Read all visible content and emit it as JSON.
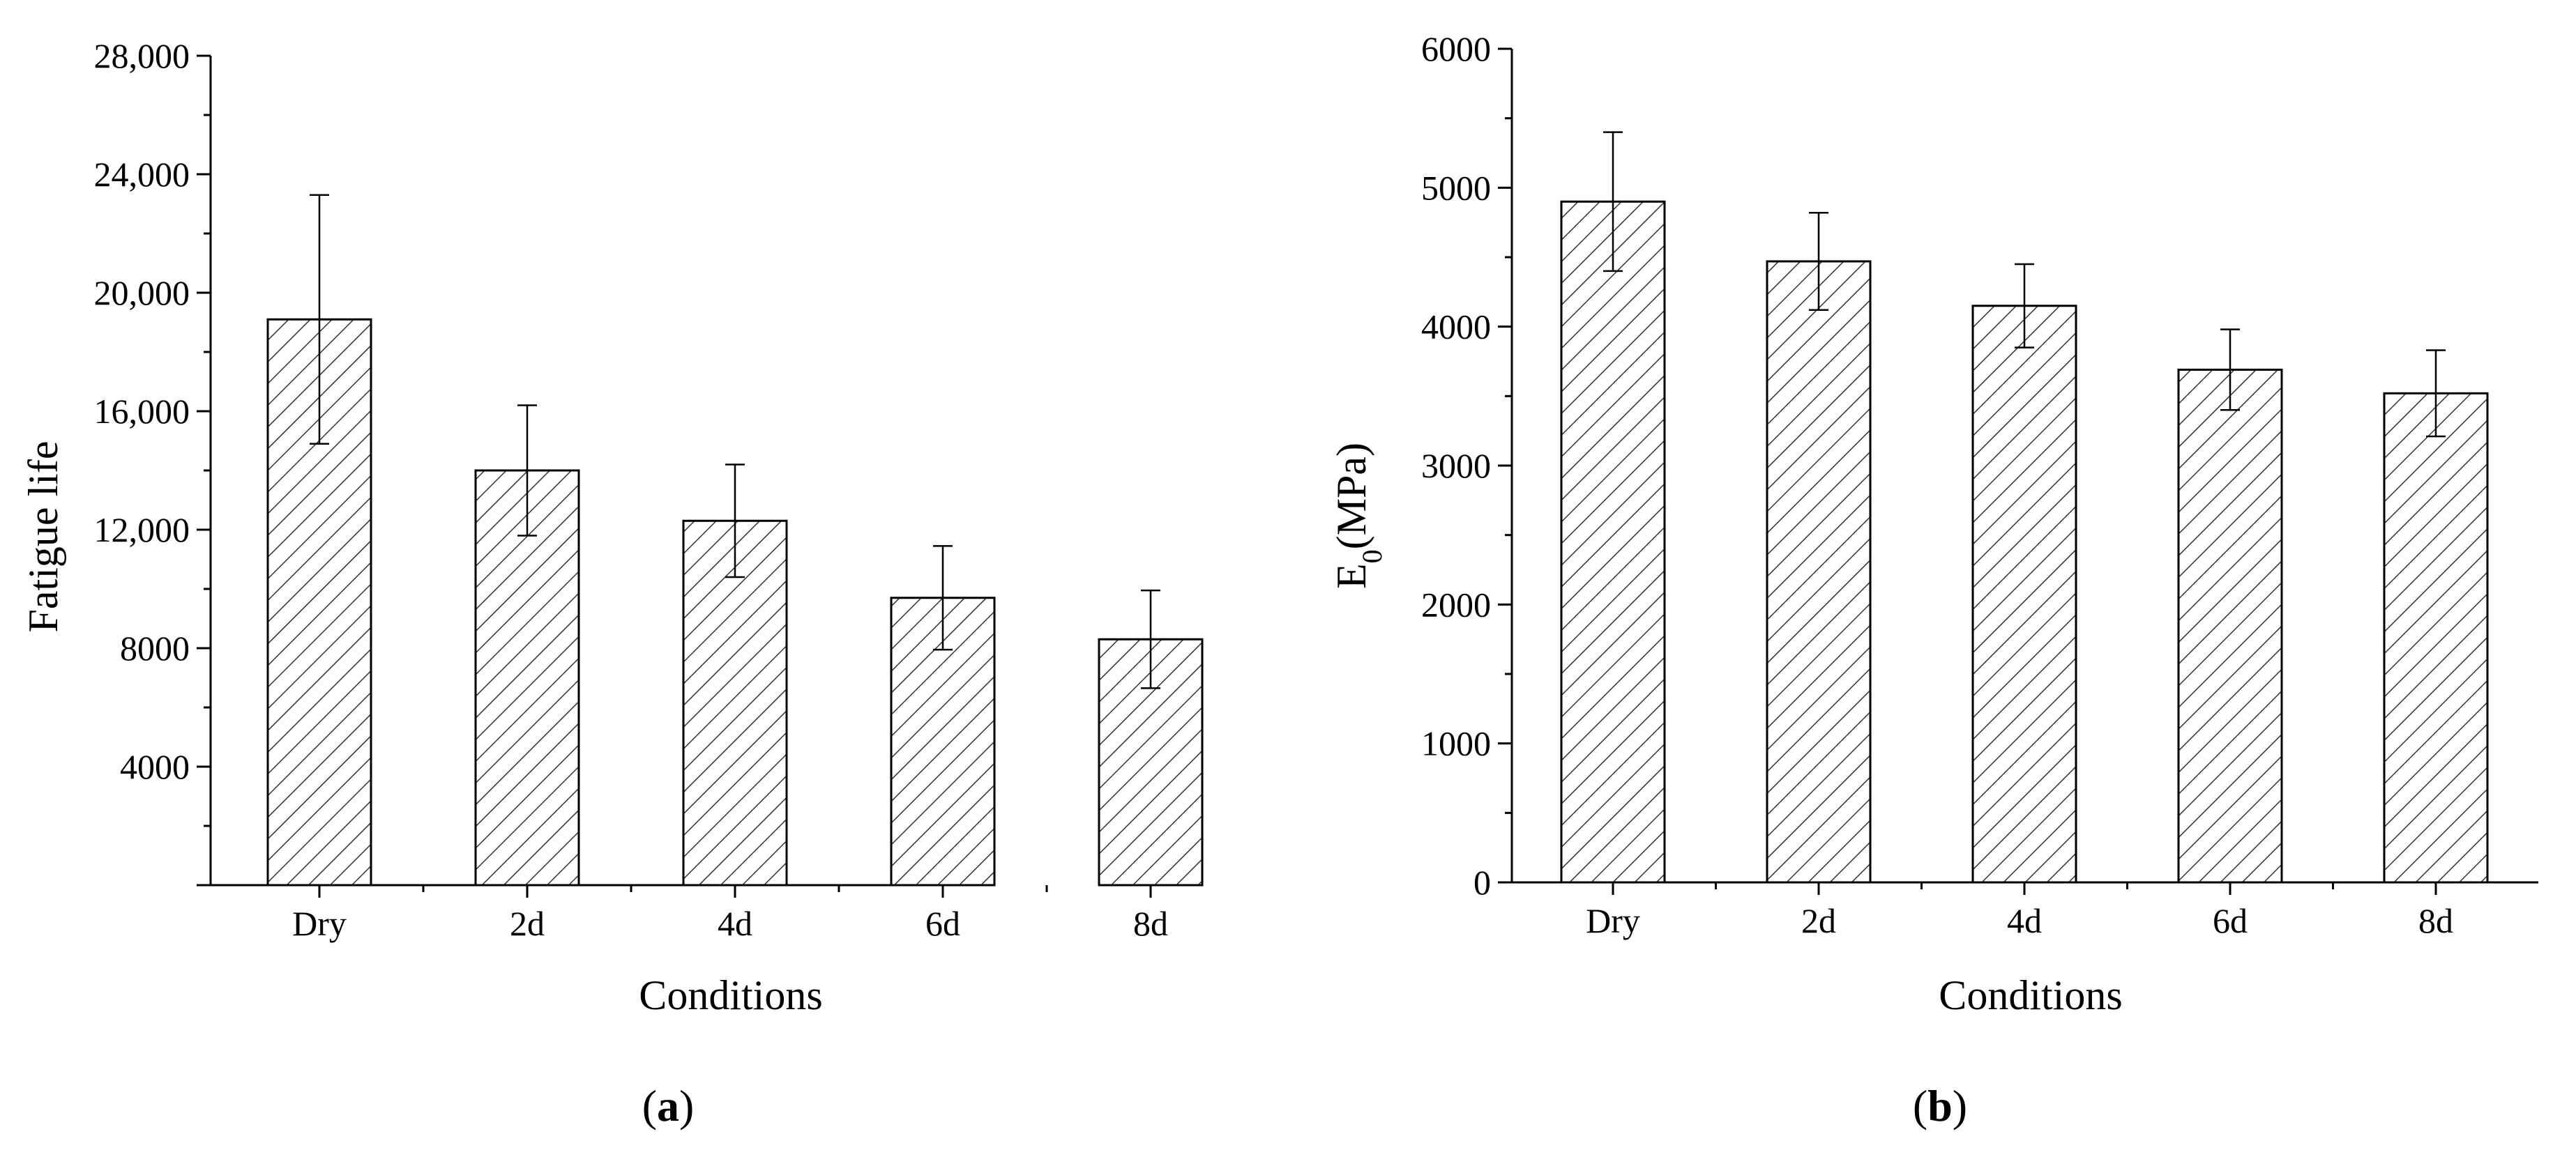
{
  "chart_data": [
    {
      "type": "bar",
      "panel_label": {
        "open": "(",
        "letter": "a",
        "close": ")"
      },
      "categories": [
        "Dry",
        "2d",
        "4d",
        "6d",
        "8d"
      ],
      "values": [
        19100,
        14000,
        12300,
        9700,
        8300
      ],
      "errors": [
        4200,
        2200,
        1900,
        1750,
        1650
      ],
      "xlabel": "Conditions",
      "ylabel": "Fatigue life",
      "ylim": [
        0,
        28000
      ],
      "yticks": [
        4000,
        8000,
        12000,
        16000,
        20000,
        24000,
        28000
      ],
      "ytick_labels": [
        "4000",
        "8000",
        "12,000",
        "16,000",
        "20,000",
        "24,000",
        "28,000"
      ],
      "grid": false,
      "fill": "hatched"
    },
    {
      "type": "bar",
      "panel_label": {
        "open": "(",
        "letter": "b",
        "close": ")"
      },
      "categories": [
        "Dry",
        "2d",
        "4d",
        "6d",
        "8d"
      ],
      "values": [
        4900,
        4470,
        4150,
        3690,
        3520
      ],
      "errors": [
        500,
        350,
        300,
        290,
        310
      ],
      "xlabel": "Conditions",
      "ylabel": {
        "main": "E",
        "sub": "0",
        "rest": "(MPa)"
      },
      "ylim": [
        0,
        6000
      ],
      "yticks": [
        0,
        1000,
        2000,
        3000,
        4000,
        5000,
        6000
      ],
      "ytick_labels": [
        "0",
        "1000",
        "2000",
        "3000",
        "4000",
        "5000",
        "6000"
      ],
      "grid": false,
      "fill": "hatched"
    }
  ],
  "colors": {
    "bar_stroke": "#000000",
    "hatch": "#333333",
    "background": "#ffffff"
  }
}
